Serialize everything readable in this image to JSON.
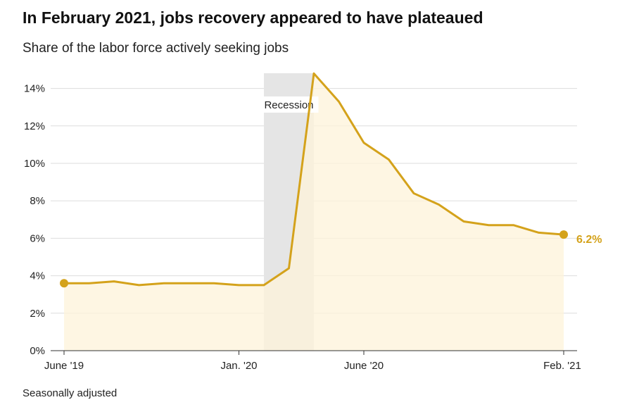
{
  "title": "In February 2021, jobs recovery appeared to have plateaued",
  "subtitle": "Share of the labor force actively seeking jobs",
  "footnote": "Seasonally adjusted",
  "colors": {
    "line": "#d4a21b",
    "fill": "#fdf3da",
    "recession_shade": "#e5e5e5",
    "grid": "#dddddd",
    "axis": "#333333",
    "text": "#222222"
  },
  "chart_data": {
    "type": "area",
    "title": "In February 2021, jobs recovery appeared to have plateaued",
    "subtitle": "Share of the labor force actively seeking jobs",
    "xlabel": "",
    "ylabel": "",
    "ylim": [
      0,
      14.5
    ],
    "yticks": [
      {
        "value": 0,
        "label": "0%"
      },
      {
        "value": 2,
        "label": "2%"
      },
      {
        "value": 4,
        "label": "4%"
      },
      {
        "value": 6,
        "label": "6%"
      },
      {
        "value": 8,
        "label": "8%"
      },
      {
        "value": 10,
        "label": "10%"
      },
      {
        "value": 12,
        "label": "12%"
      },
      {
        "value": 14,
        "label": "14%"
      }
    ],
    "xticks": [
      {
        "date": "2019-06",
        "label": "June '19"
      },
      {
        "date": "2020-01",
        "label": "Jan. '20"
      },
      {
        "date": "2020-06",
        "label": "June '20"
      },
      {
        "date": "2021-02",
        "label": "Feb. '21"
      }
    ],
    "grid": true,
    "recession": {
      "start": "2020-02",
      "end": "2020-04",
      "label": "Recession"
    },
    "end_label": "6.2%",
    "series": [
      {
        "name": "",
        "points": [
          {
            "x": "2019-06",
            "y": 3.6
          },
          {
            "x": "2019-07",
            "y": 3.6
          },
          {
            "x": "2019-08",
            "y": 3.7
          },
          {
            "x": "2019-09",
            "y": 3.5
          },
          {
            "x": "2019-10",
            "y": 3.6
          },
          {
            "x": "2019-11",
            "y": 3.6
          },
          {
            "x": "2019-12",
            "y": 3.6
          },
          {
            "x": "2020-01",
            "y": 3.5
          },
          {
            "x": "2020-02",
            "y": 3.5
          },
          {
            "x": "2020-03",
            "y": 4.4
          },
          {
            "x": "2020-04",
            "y": 14.8
          },
          {
            "x": "2020-05",
            "y": 13.3
          },
          {
            "x": "2020-06",
            "y": 11.1
          },
          {
            "x": "2020-07",
            "y": 10.2
          },
          {
            "x": "2020-08",
            "y": 8.4
          },
          {
            "x": "2020-09",
            "y": 7.8
          },
          {
            "x": "2020-10",
            "y": 6.9
          },
          {
            "x": "2020-11",
            "y": 6.7
          },
          {
            "x": "2020-12",
            "y": 6.7
          },
          {
            "x": "2021-01",
            "y": 6.3
          },
          {
            "x": "2021-02",
            "y": 6.2
          }
        ]
      }
    ]
  }
}
